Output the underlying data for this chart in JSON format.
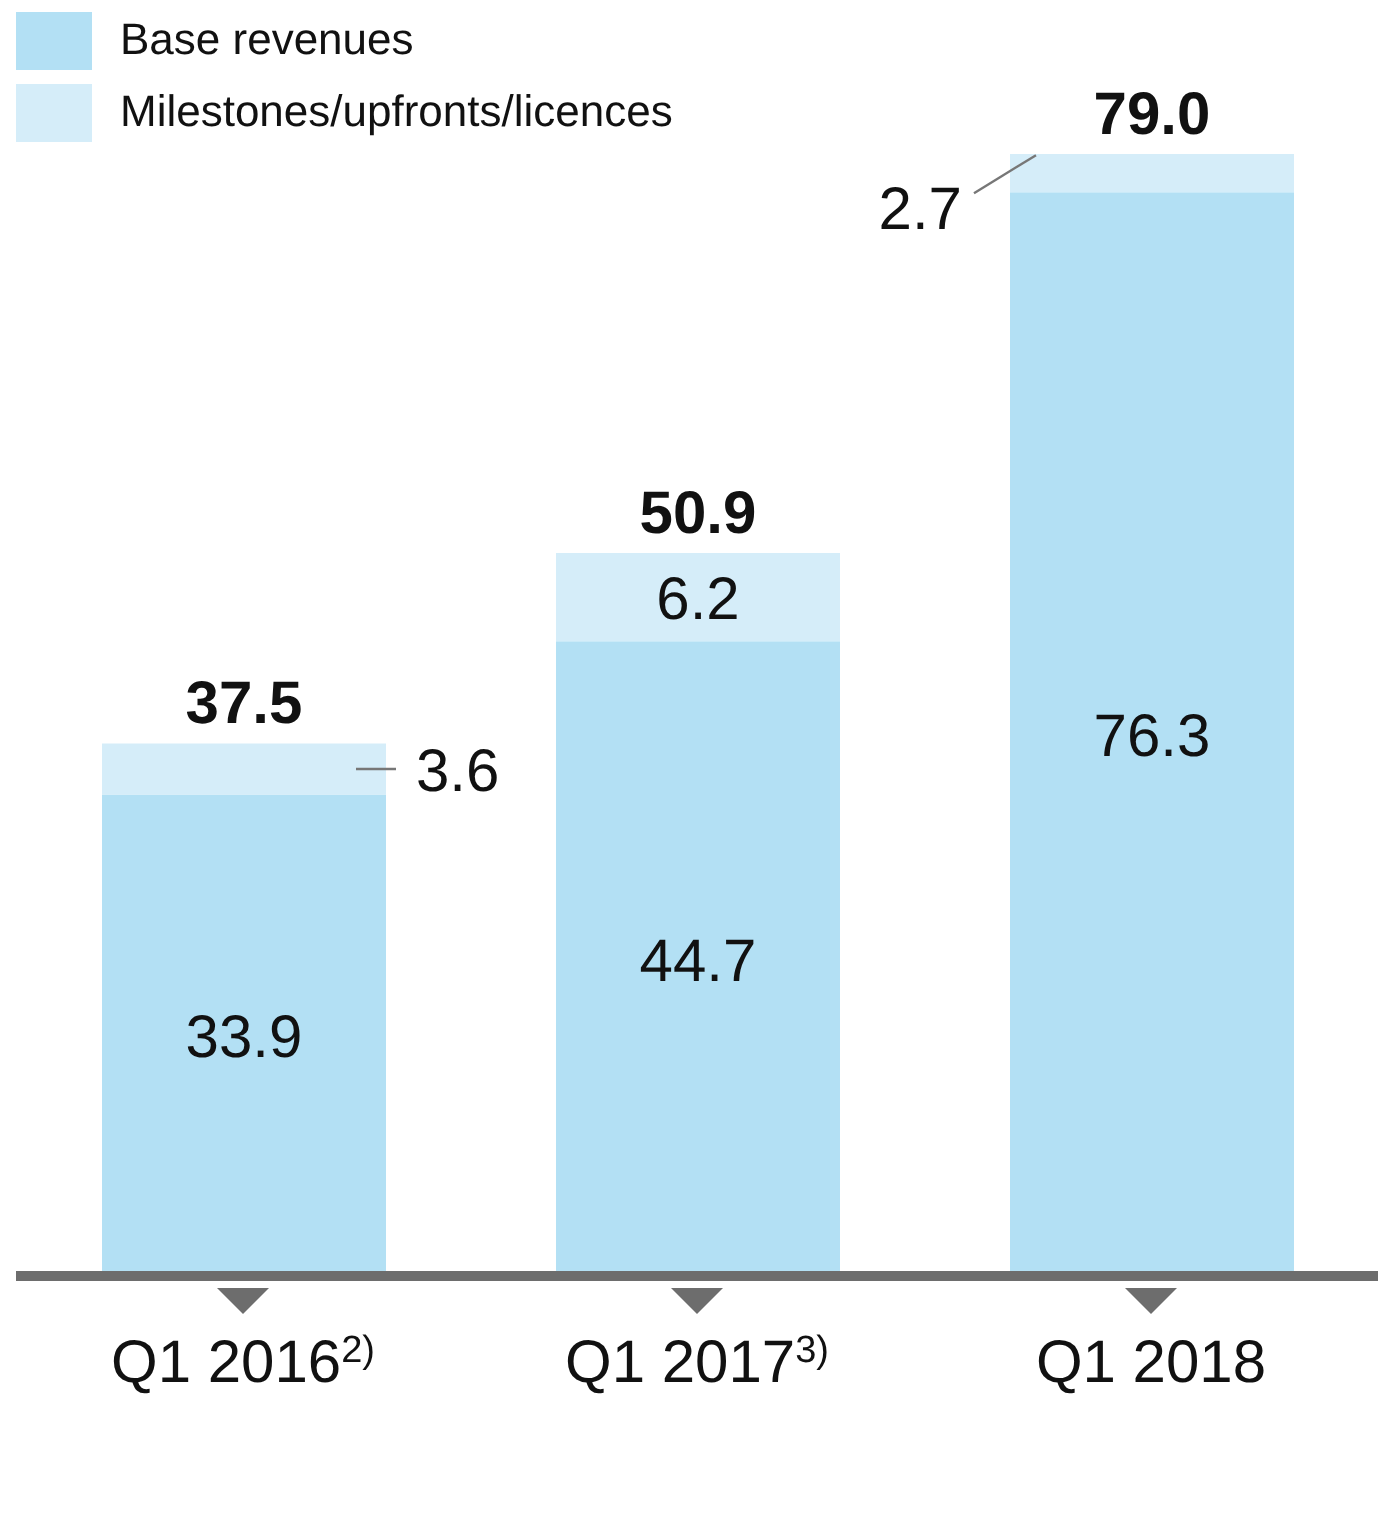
{
  "chart_data": {
    "type": "bar",
    "stacked": true,
    "categories": [
      "Q1 2016$^{2)}$",
      "Q1 2017$^{3)}$",
      "Q1 2018"
    ],
    "series": [
      {
        "name": "Base revenues",
        "color": "#b3e0f4",
        "values": [
          33.9,
          44.7,
          76.3
        ]
      },
      {
        "name": "Milestones/upfronts/licences",
        "color": "#d5edf9",
        "values": [
          3.6,
          6.2,
          2.7
        ]
      }
    ],
    "data_labels": true,
    "totals": [
      "37.5",
      "50.9",
      "79.0"
    ],
    "legend": "top left"
  }
}
